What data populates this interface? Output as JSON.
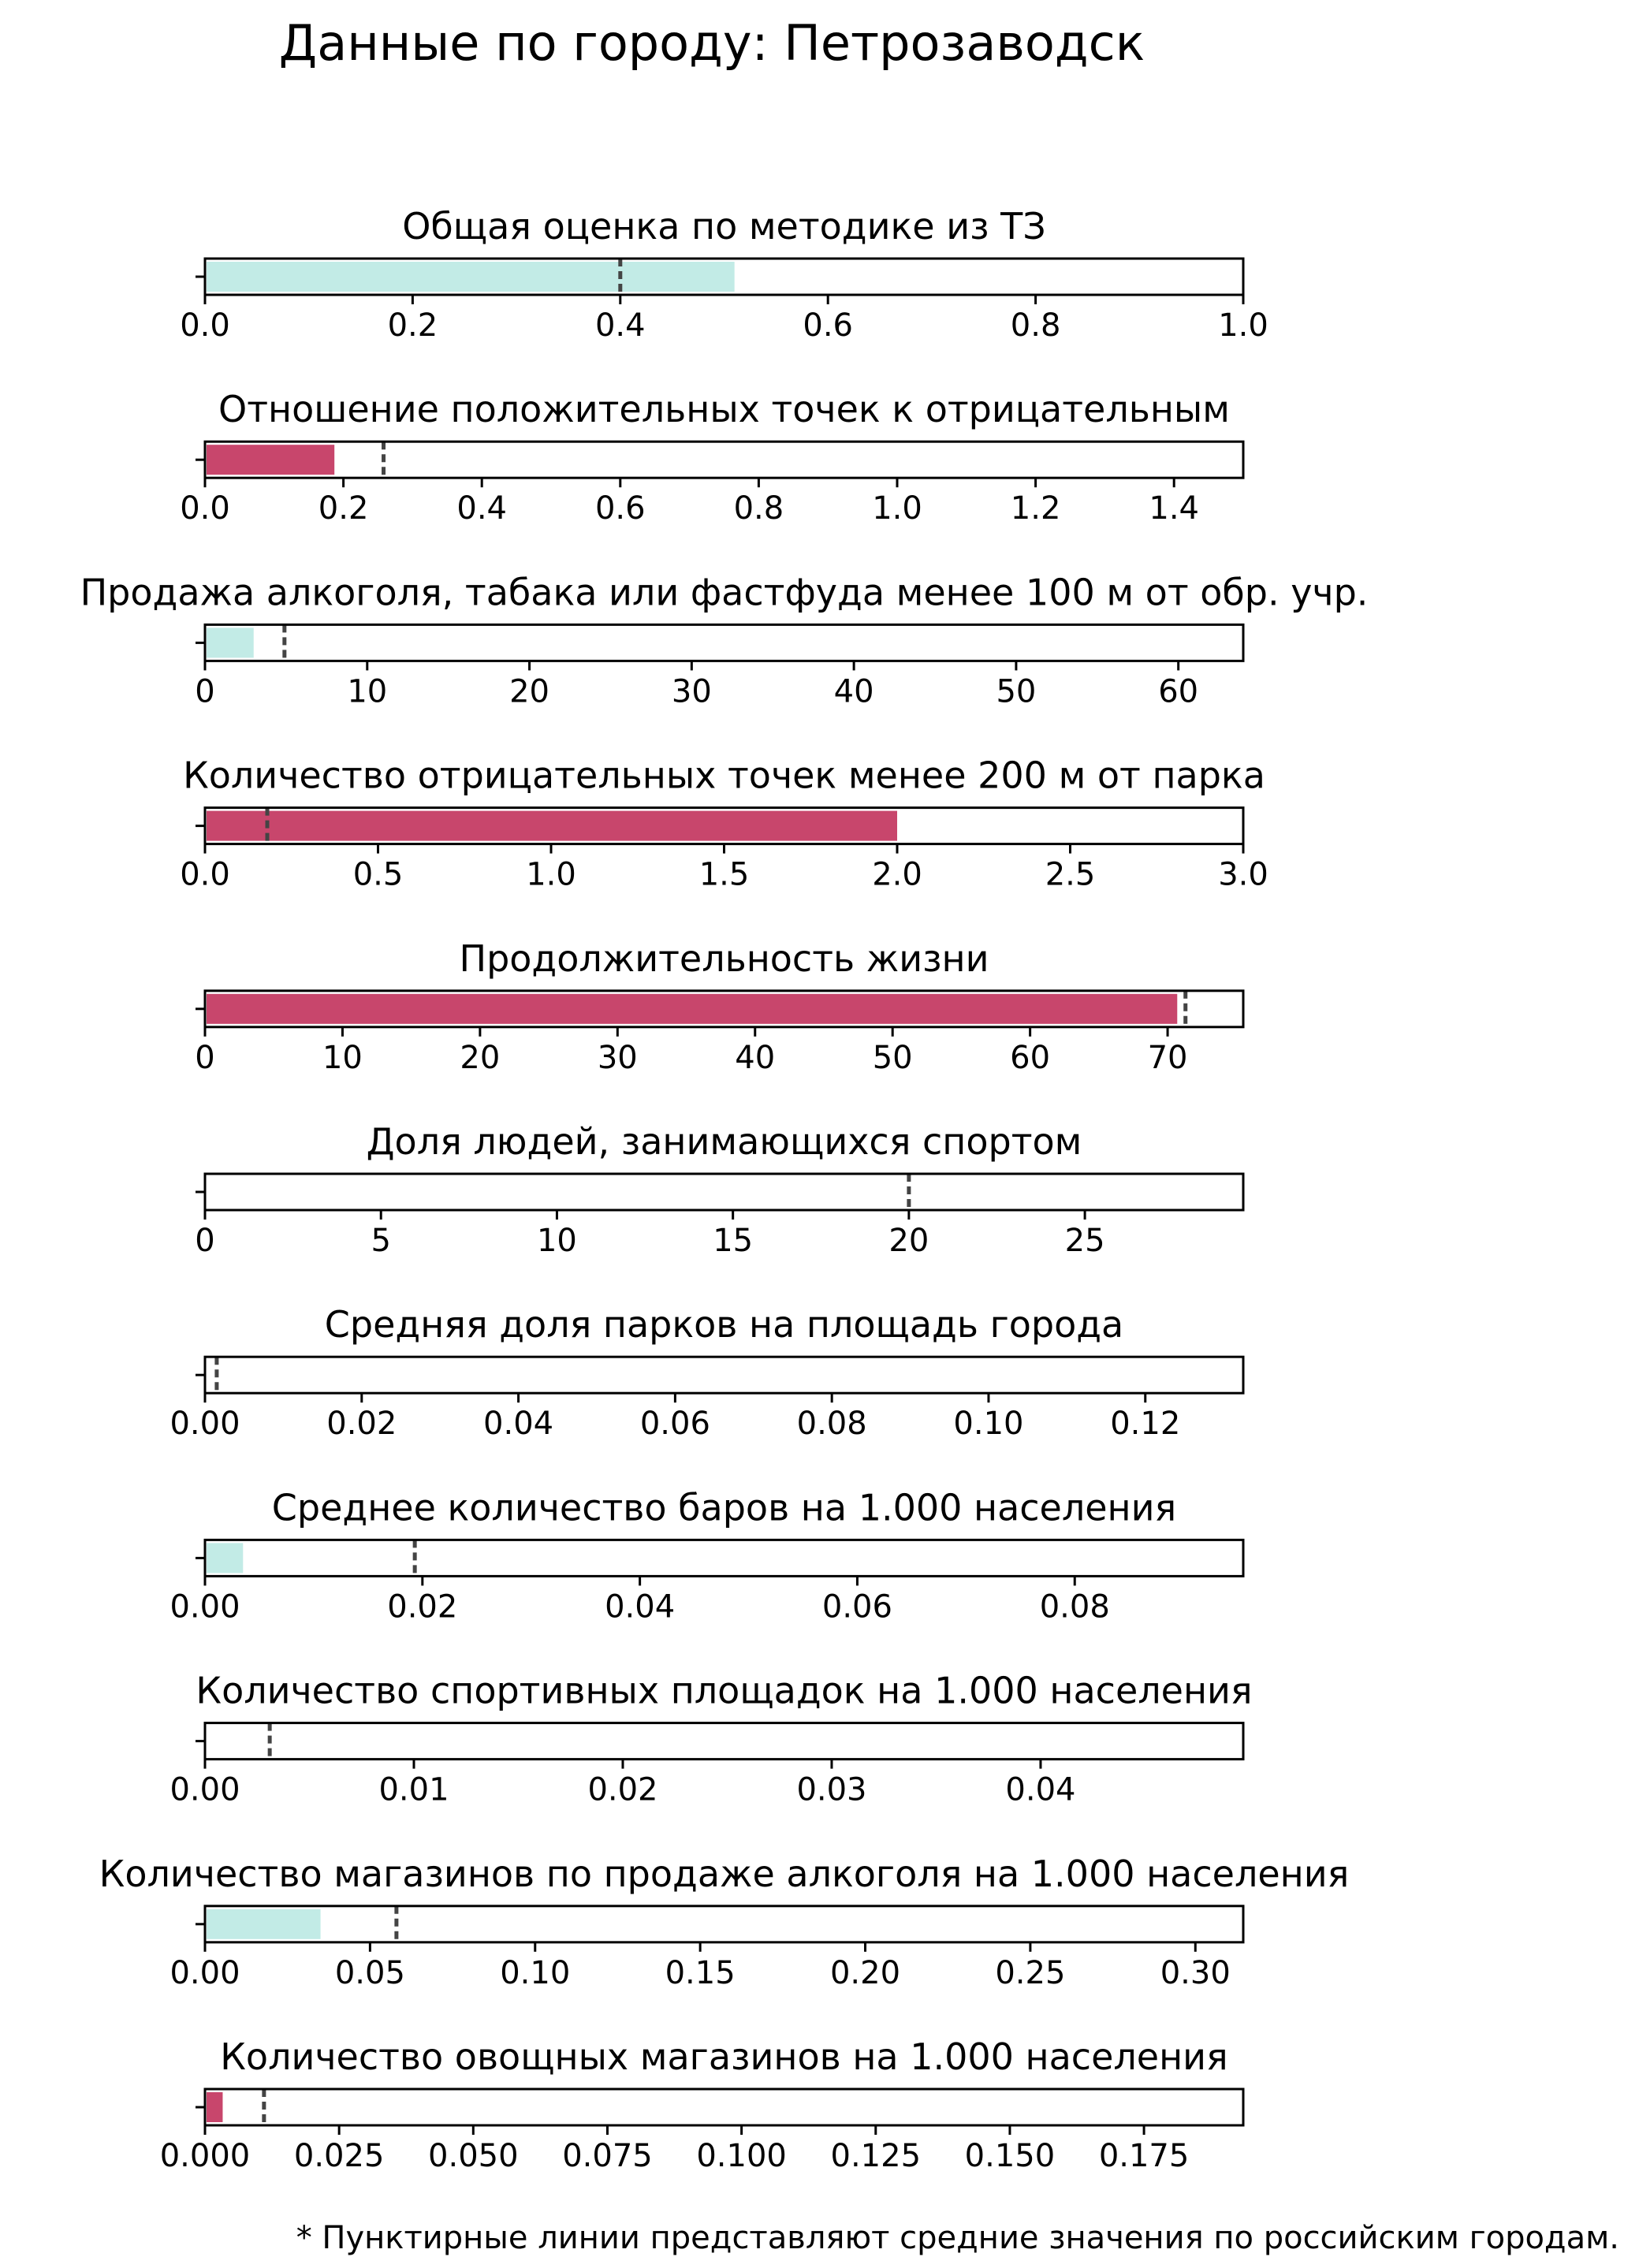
{
  "title": "Данные по городу: Петрозаводск",
  "footnote": "* Пунктирные линии представляют средние значения по российским городам.",
  "colors": {
    "good": "#c2ebe6",
    "bad": "#c8466c",
    "mean_line": "#444444",
    "frame": "#000000"
  },
  "chart_data": [
    {
      "type": "bar",
      "orientation": "horizontal",
      "title": "Общая оценка по методике из ТЗ",
      "value": 0.51,
      "mean": 0.4,
      "color": "#c2ebe6",
      "xlim": [
        0,
        1.0
      ],
      "ticks": [
        0.0,
        0.2,
        0.4,
        0.6,
        0.8,
        1.0
      ],
      "tick_labels": [
        "0.0",
        "0.2",
        "0.4",
        "0.6",
        "0.8",
        "1.0"
      ]
    },
    {
      "type": "bar",
      "orientation": "horizontal",
      "title": "Отношение положительных точек к отрицательным",
      "value": 0.187,
      "mean": 0.258,
      "color": "#c8466c",
      "xlim": [
        0,
        1.5
      ],
      "ticks": [
        0.0,
        0.2,
        0.4,
        0.6,
        0.8,
        1.0,
        1.2,
        1.4
      ],
      "tick_labels": [
        "0.0",
        "0.2",
        "0.4",
        "0.6",
        "0.8",
        "1.0",
        "1.2",
        "1.4"
      ]
    },
    {
      "type": "bar",
      "orientation": "horizontal",
      "title": "Продажа алкоголя, табака или фастфуда менее 100 м от обр. учр.",
      "value": 3,
      "mean": 4.9,
      "color": "#c2ebe6",
      "xlim": [
        0,
        64
      ],
      "ticks": [
        0,
        10,
        20,
        30,
        40,
        50,
        60
      ],
      "tick_labels": [
        "0",
        "10",
        "20",
        "30",
        "40",
        "50",
        "60"
      ]
    },
    {
      "type": "bar",
      "orientation": "horizontal",
      "title": "Количество отрицательных точек менее 200 м от парка",
      "value": 2.0,
      "mean": 0.18,
      "color": "#c8466c",
      "xlim": [
        0,
        3.0
      ],
      "ticks": [
        0.0,
        0.5,
        1.0,
        1.5,
        2.0,
        2.5,
        3.0
      ],
      "tick_labels": [
        "0.0",
        "0.5",
        "1.0",
        "1.5",
        "2.0",
        "2.5",
        "3.0"
      ]
    },
    {
      "type": "bar",
      "orientation": "horizontal",
      "title": "Продолжительность жизни",
      "value": 70.7,
      "mean": 71.3,
      "color": "#c8466c",
      "xlim": [
        0,
        75.5
      ],
      "ticks": [
        0,
        10,
        20,
        30,
        40,
        50,
        60,
        70
      ],
      "tick_labels": [
        "0",
        "10",
        "20",
        "30",
        "40",
        "50",
        "60",
        "70"
      ]
    },
    {
      "type": "bar",
      "orientation": "horizontal",
      "title": "Доля людей, занимающихся спортом",
      "value": 0,
      "mean": 20.0,
      "color": "#c2ebe6",
      "xlim": [
        0,
        29.5
      ],
      "ticks": [
        0,
        5,
        10,
        15,
        20,
        25
      ],
      "tick_labels": [
        "0",
        "5",
        "10",
        "15",
        "20",
        "25"
      ]
    },
    {
      "type": "bar",
      "orientation": "horizontal",
      "title": "Средняя доля парков на площадь города",
      "value": 0,
      "mean": 0.0015,
      "color": "#c2ebe6",
      "xlim": [
        0,
        0.1325
      ],
      "ticks": [
        0.0,
        0.02,
        0.04,
        0.06,
        0.08,
        0.1,
        0.12
      ],
      "tick_labels": [
        "0.00",
        "0.02",
        "0.04",
        "0.06",
        "0.08",
        "0.10",
        "0.12"
      ]
    },
    {
      "type": "bar",
      "orientation": "horizontal",
      "title": "Среднее количество баров на 1.000 населения",
      "value": 0.0035,
      "mean": 0.0193,
      "color": "#c2ebe6",
      "xlim": [
        0,
        0.0955
      ],
      "ticks": [
        0.0,
        0.02,
        0.04,
        0.06,
        0.08
      ],
      "tick_labels": [
        "0.00",
        "0.02",
        "0.04",
        "0.06",
        "0.08"
      ]
    },
    {
      "type": "bar",
      "orientation": "horizontal",
      "title": "Количество спортивных площадок на 1.000 населения",
      "value": 0,
      "mean": 0.0031,
      "color": "#c2ebe6",
      "xlim": [
        0,
        0.0497
      ],
      "ticks": [
        0.0,
        0.01,
        0.02,
        0.03,
        0.04
      ],
      "tick_labels": [
        "0.00",
        "0.01",
        "0.02",
        "0.03",
        "0.04"
      ]
    },
    {
      "type": "bar",
      "orientation": "horizontal",
      "title": "Количество магазинов по продаже алкоголя на 1.000 населения",
      "value": 0.035,
      "mean": 0.058,
      "color": "#c2ebe6",
      "xlim": [
        0,
        0.3145
      ],
      "ticks": [
        0.0,
        0.05,
        0.1,
        0.15,
        0.2,
        0.25,
        0.3
      ],
      "tick_labels": [
        "0.00",
        "0.05",
        "0.10",
        "0.15",
        "0.20",
        "0.25",
        "0.30"
      ]
    },
    {
      "type": "bar",
      "orientation": "horizontal",
      "title": "Количество овощных магазинов на 1.000 населения",
      "value": 0.0033,
      "mean": 0.011,
      "color": "#c8466c",
      "xlim": [
        0,
        0.1935
      ],
      "ticks": [
        0.0,
        0.025,
        0.05,
        0.075,
        0.1,
        0.125,
        0.15,
        0.175
      ],
      "tick_labels": [
        "0.000",
        "0.025",
        "0.050",
        "0.075",
        "0.100",
        "0.125",
        "0.150",
        "0.175"
      ]
    }
  ]
}
